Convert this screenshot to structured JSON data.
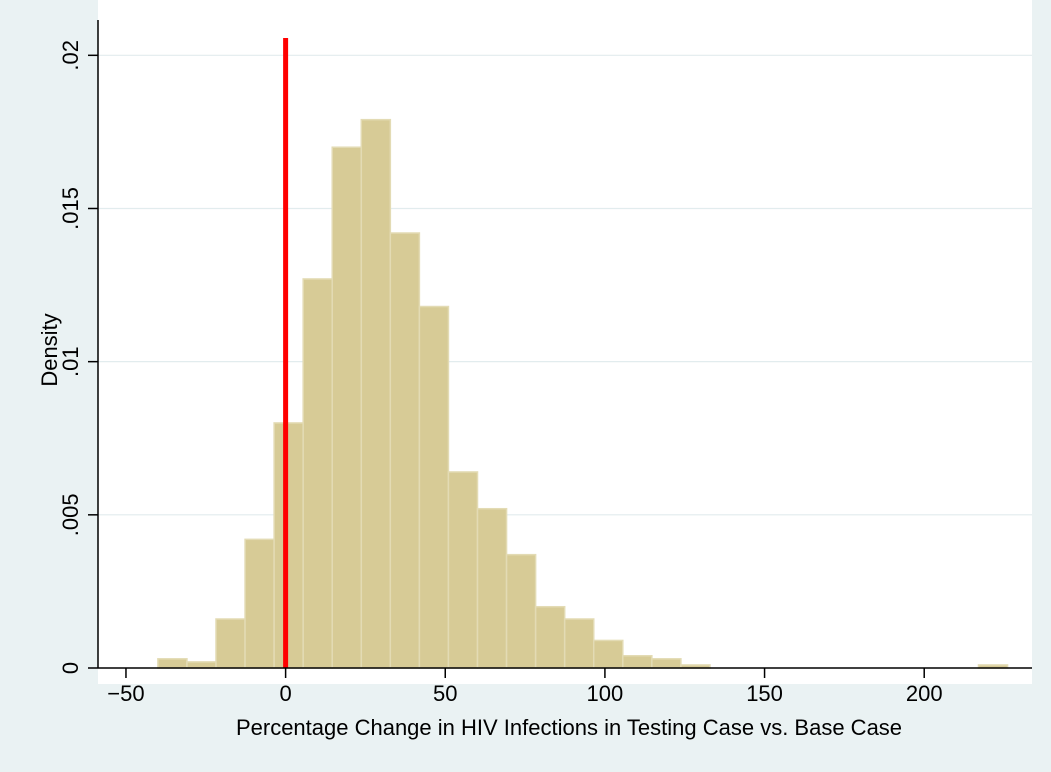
{
  "chart_data": {
    "type": "bar",
    "xlabel": "Percentage Change in HIV Infections in Testing Case vs. Base Case",
    "ylabel": "Density",
    "xlim": [
      -55,
      230
    ],
    "ylim": [
      0,
      0.0205
    ],
    "x_ticks": [
      -50,
      0,
      50,
      100,
      150,
      200
    ],
    "x_tick_labels": [
      "−50",
      "0",
      "50",
      "100",
      "150",
      "200"
    ],
    "y_ticks": [
      0,
      0.005,
      0.01,
      0.015,
      0.02
    ],
    "y_tick_labels": [
      "0",
      ".005",
      ".01",
      ".015",
      ".02"
    ],
    "grid": true,
    "bin_width": 9.1,
    "bins": [
      {
        "x0": -40.0,
        "density": 0.0003
      },
      {
        "x0": -30.9,
        "density": 0.0002
      },
      {
        "x0": -21.8,
        "density": 0.0016
      },
      {
        "x0": -12.7,
        "density": 0.0042
      },
      {
        "x0": -3.6,
        "density": 0.008
      },
      {
        "x0": 5.5,
        "density": 0.0127
      },
      {
        "x0": 14.6,
        "density": 0.017
      },
      {
        "x0": 23.7,
        "density": 0.0179
      },
      {
        "x0": 32.8,
        "density": 0.0142
      },
      {
        "x0": 41.9,
        "density": 0.0118
      },
      {
        "x0": 51.0,
        "density": 0.0064
      },
      {
        "x0": 60.1,
        "density": 0.0052
      },
      {
        "x0": 69.2,
        "density": 0.0037
      },
      {
        "x0": 78.3,
        "density": 0.002
      },
      {
        "x0": 87.4,
        "density": 0.0016
      },
      {
        "x0": 96.5,
        "density": 0.0009
      },
      {
        "x0": 105.6,
        "density": 0.0004
      },
      {
        "x0": 114.7,
        "density": 0.0003
      },
      {
        "x0": 123.8,
        "density": 0.0001
      },
      {
        "x0": 217.0,
        "density": 0.0001
      }
    ],
    "reference_line": {
      "x": 0,
      "color": "#ff0000"
    },
    "colors": {
      "bar_fill": "#d7cb96",
      "bar_stroke": "#e3dbb4",
      "plot_background": "#ffffff",
      "page_background": "#eaf2f3",
      "grid": "#e2ecee"
    }
  }
}
